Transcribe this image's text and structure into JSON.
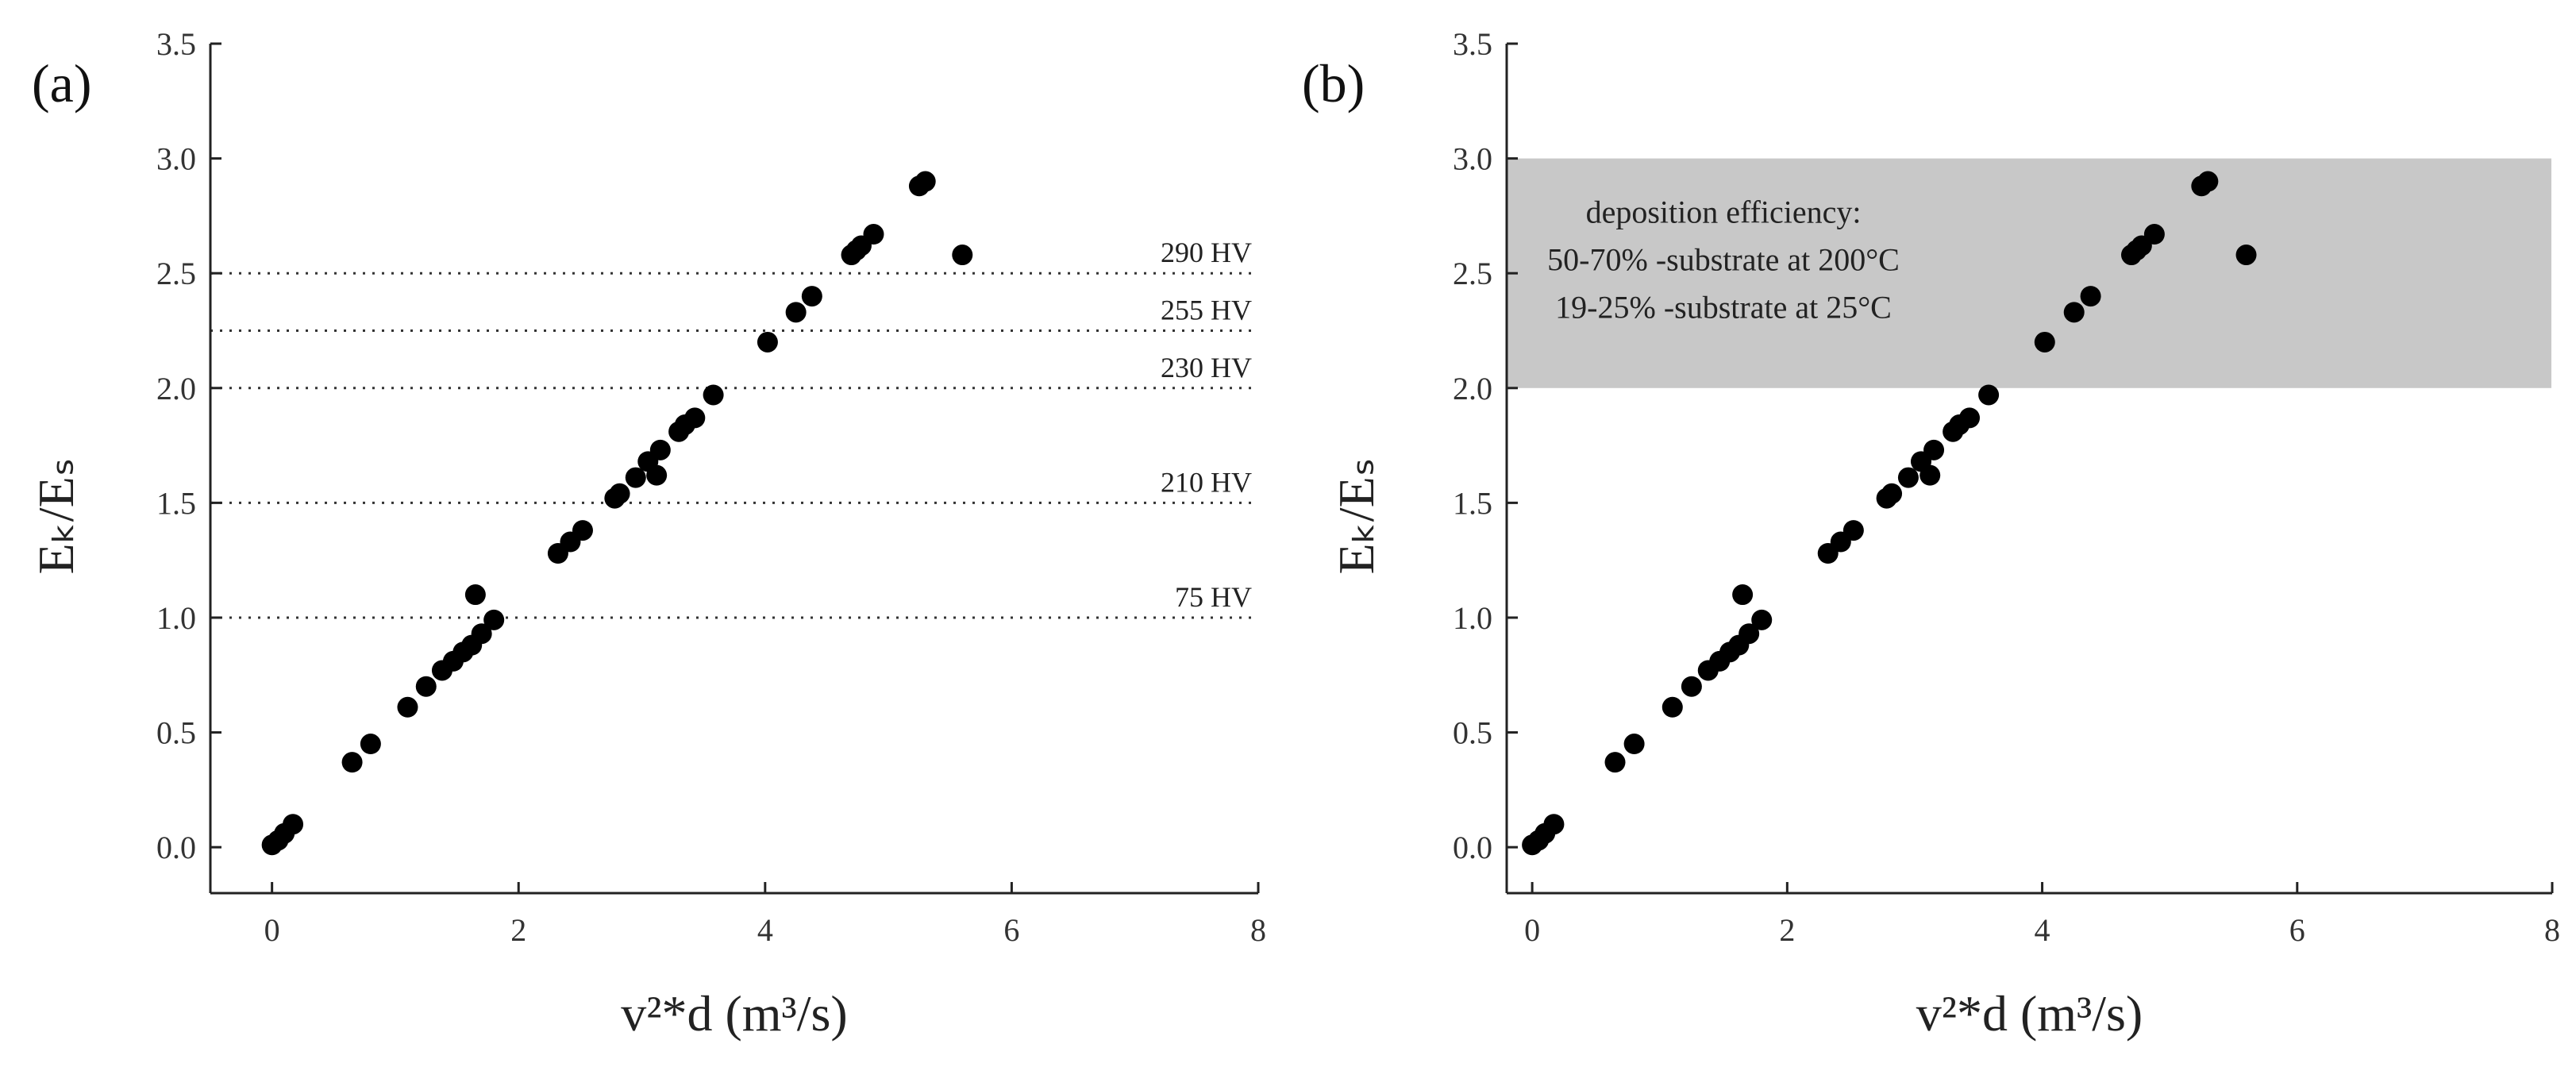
{
  "chart_data": [
    {
      "type": "scatter",
      "panel_label": "(a)",
      "xlabel": "v²*d (m³/s)",
      "ylabel": "Eₖ/Eₛ",
      "xlim": [
        -0.5,
        8
      ],
      "ylim": [
        -0.2,
        3.5
      ],
      "xticks": [
        "0",
        "2",
        "4",
        "6",
        "8"
      ],
      "yticks": [
        "0.0",
        "0.5",
        "1.0",
        "1.5",
        "2.0",
        "2.5",
        "3.0",
        "3.5"
      ],
      "series": [
        {
          "name": "data",
          "points": [
            [
              0.0,
              0.01
            ],
            [
              0.05,
              0.03
            ],
            [
              0.1,
              0.06
            ],
            [
              0.17,
              0.1
            ],
            [
              0.65,
              0.37
            ],
            [
              0.8,
              0.45
            ],
            [
              1.1,
              0.61
            ],
            [
              1.25,
              0.7
            ],
            [
              1.38,
              0.77
            ],
            [
              1.47,
              0.81
            ],
            [
              1.55,
              0.85
            ],
            [
              1.62,
              0.88
            ],
            [
              1.65,
              1.1
            ],
            [
              1.7,
              0.93
            ],
            [
              1.8,
              0.99
            ],
            [
              2.32,
              1.28
            ],
            [
              2.42,
              1.33
            ],
            [
              2.52,
              1.38
            ],
            [
              2.78,
              1.52
            ],
            [
              2.82,
              1.54
            ],
            [
              2.95,
              1.61
            ],
            [
              3.05,
              1.68
            ],
            [
              3.12,
              1.62
            ],
            [
              3.15,
              1.73
            ],
            [
              3.3,
              1.81
            ],
            [
              3.35,
              1.84
            ],
            [
              3.43,
              1.87
            ],
            [
              3.58,
              1.97
            ],
            [
              4.02,
              2.2
            ],
            [
              4.25,
              2.33
            ],
            [
              4.38,
              2.4
            ],
            [
              4.7,
              2.58
            ],
            [
              4.74,
              2.6
            ],
            [
              4.78,
              2.62
            ],
            [
              4.88,
              2.67
            ],
            [
              5.25,
              2.88
            ],
            [
              5.3,
              2.9
            ],
            [
              5.6,
              2.58
            ]
          ]
        }
      ],
      "hlines": [
        {
          "y": 2.5,
          "label": "290 HV"
        },
        {
          "y": 2.25,
          "label": "255 HV"
        },
        {
          "y": 2.0,
          "label": "230 HV"
        },
        {
          "y": 1.5,
          "label": "210 HV"
        },
        {
          "y": 1.0,
          "label": "75 HV"
        }
      ]
    },
    {
      "type": "scatter",
      "panel_label": "(b)",
      "xlabel": "v²*d (m³/s)",
      "ylabel": "Eₖ/Eₛ",
      "xlim": [
        -0.2,
        8
      ],
      "ylim": [
        -0.2,
        3.5
      ],
      "xticks": [
        "0",
        "2",
        "4",
        "6",
        "8"
      ],
      "yticks": [
        "0.0",
        "0.5",
        "1.0",
        "1.5",
        "2.0",
        "2.5",
        "3.0",
        "3.5"
      ],
      "series": [
        {
          "name": "data",
          "points": [
            [
              0.0,
              0.01
            ],
            [
              0.05,
              0.03
            ],
            [
              0.1,
              0.06
            ],
            [
              0.17,
              0.1
            ],
            [
              0.65,
              0.37
            ],
            [
              0.8,
              0.45
            ],
            [
              1.1,
              0.61
            ],
            [
              1.25,
              0.7
            ],
            [
              1.38,
              0.77
            ],
            [
              1.47,
              0.81
            ],
            [
              1.55,
              0.85
            ],
            [
              1.62,
              0.88
            ],
            [
              1.65,
              1.1
            ],
            [
              1.7,
              0.93
            ],
            [
              1.8,
              0.99
            ],
            [
              2.32,
              1.28
            ],
            [
              2.42,
              1.33
            ],
            [
              2.52,
              1.38
            ],
            [
              2.78,
              1.52
            ],
            [
              2.82,
              1.54
            ],
            [
              2.95,
              1.61
            ],
            [
              3.05,
              1.68
            ],
            [
              3.12,
              1.62
            ],
            [
              3.15,
              1.73
            ],
            [
              3.3,
              1.81
            ],
            [
              3.35,
              1.84
            ],
            [
              3.43,
              1.87
            ],
            [
              3.58,
              1.97
            ],
            [
              4.02,
              2.2
            ],
            [
              4.25,
              2.33
            ],
            [
              4.38,
              2.4
            ],
            [
              4.7,
              2.58
            ],
            [
              4.74,
              2.6
            ],
            [
              4.78,
              2.62
            ],
            [
              4.88,
              2.67
            ],
            [
              5.25,
              2.88
            ],
            [
              5.3,
              2.9
            ],
            [
              5.6,
              2.58
            ]
          ]
        }
      ],
      "band": {
        "y_range": [
          2.0,
          3.0
        ],
        "color": "#c8c8c8",
        "text_lines": [
          "deposition efficiency:",
          "50-70% -substrate at 200°C",
          "19-25% -substrate at 25°C"
        ]
      }
    }
  ]
}
